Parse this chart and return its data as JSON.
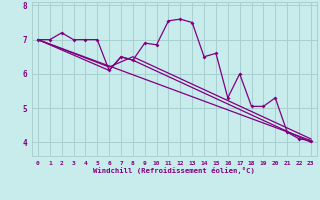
{
  "xlabel": "Windchill (Refroidissement éolien,°C)",
  "bg_color": "#c8ecec",
  "line_color": "#800080",
  "grid_color": "#a8d0d0",
  "xlim": [
    -0.5,
    23.5
  ],
  "ylim": [
    3.6,
    8.1
  ],
  "yticks": [
    4,
    5,
    6,
    7,
    8
  ],
  "xticks": [
    0,
    1,
    2,
    3,
    4,
    5,
    6,
    7,
    8,
    9,
    10,
    11,
    12,
    13,
    14,
    15,
    16,
    17,
    18,
    19,
    20,
    21,
    22,
    23
  ],
  "series1_x": [
    0,
    1,
    2,
    3,
    4,
    5,
    6,
    7,
    8,
    9,
    10,
    11,
    12,
    13,
    14,
    15,
    16,
    17,
    18,
    19,
    20,
    21,
    22,
    23
  ],
  "series1_y": [
    7.0,
    7.0,
    7.2,
    7.0,
    7.0,
    7.0,
    6.1,
    6.5,
    6.4,
    6.9,
    6.85,
    7.55,
    7.6,
    7.5,
    6.5,
    6.6,
    5.3,
    6.0,
    5.05,
    5.05,
    5.3,
    4.3,
    4.1,
    4.05
  ],
  "series2_x": [
    0,
    23
  ],
  "series2_y": [
    7.0,
    4.05
  ],
  "series3_x": [
    0,
    6,
    8,
    23
  ],
  "series3_y": [
    7.0,
    6.2,
    6.5,
    4.1
  ],
  "series4_x": [
    0,
    6,
    7,
    8,
    23
  ],
  "series4_y": [
    7.0,
    6.1,
    6.5,
    6.4,
    4.0
  ]
}
